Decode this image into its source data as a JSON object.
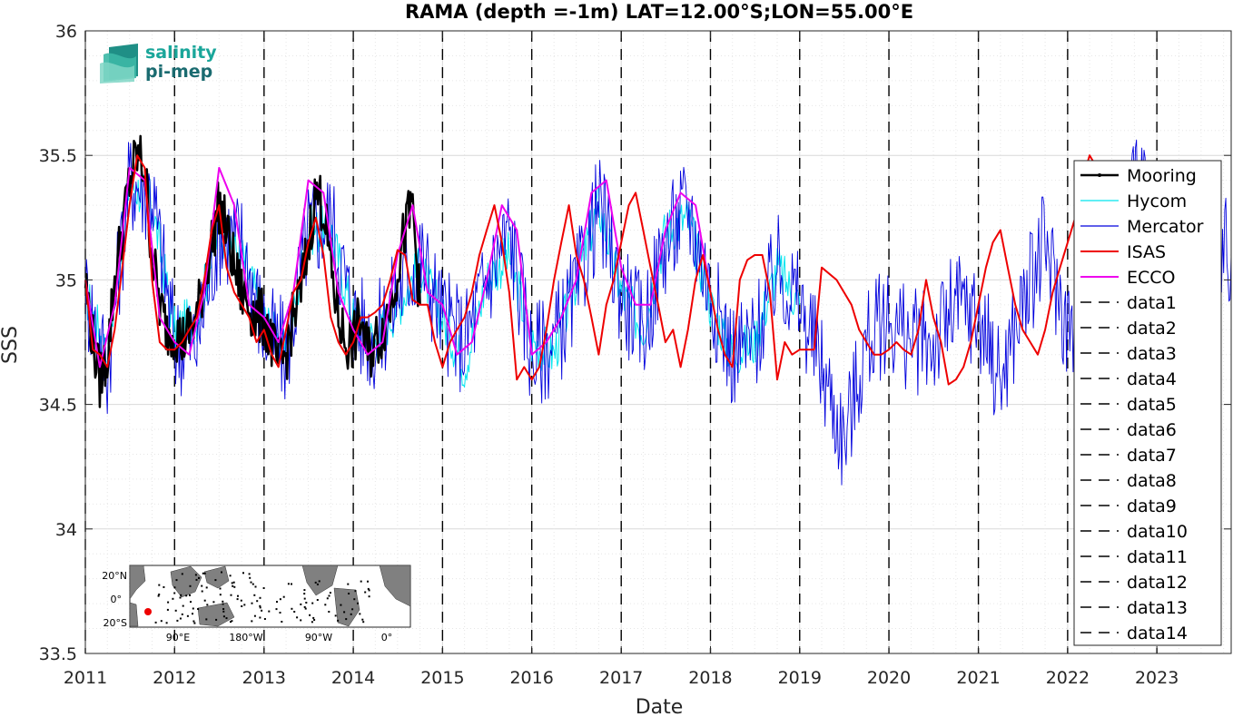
{
  "chart_data": {
    "type": "line",
    "title": "RAMA (depth =-1m) LAT=12.00°S;LON=55.00°E",
    "xlabel": "Date",
    "ylabel": "SSS",
    "xlim": [
      "2011-01-01",
      "2023-11-01"
    ],
    "ylim": [
      33.5,
      36
    ],
    "grid": true,
    "legend_position": "right",
    "x_ticks": [
      "2011",
      "2012",
      "2013",
      "2014",
      "2015",
      "2016",
      "2017",
      "2018",
      "2019",
      "2020",
      "2021",
      "2022",
      "2023"
    ],
    "y_ticks": [
      "33.5",
      "34",
      "34.5",
      "35",
      "35.5",
      "36"
    ],
    "vertical_dashed_lines": [
      "2011-01-01",
      "2012-01-01",
      "2013-01-01",
      "2014-01-01",
      "2015-01-01",
      "2016-01-01",
      "2017-01-01",
      "2018-01-01",
      "2019-01-01",
      "2020-01-01",
      "2021-01-01",
      "2022-01-01",
      "2023-01-01"
    ],
    "series": [
      {
        "name": "Mooring",
        "color": "#000000",
        "style": "solid-dot",
        "width": 2.5,
        "noise": 0.12,
        "x": [
          "2011-01-01",
          "2011-02-01",
          "2011-03-01",
          "2011-04-01",
          "2011-05-01",
          "2011-06-01",
          "2011-07-01",
          "2011-08-01",
          "2011-09-01",
          "2011-10-01",
          "2011-11-01",
          "2011-12-01",
          "2012-01-01",
          "2012-02-01",
          "2012-03-01",
          "2012-04-01",
          "2012-05-01",
          "2012-06-01",
          "2012-07-01",
          "2012-08-01",
          "2012-09-01",
          "2012-10-01",
          "2012-11-01",
          "2012-12-01",
          "2013-01-01",
          "2013-02-01",
          "2013-03-01",
          "2013-04-01",
          "2013-05-01",
          "2013-06-01",
          "2013-07-01",
          "2013-08-01",
          "2013-09-01",
          "2013-10-01",
          "2013-11-01",
          "2013-12-01",
          "2014-01-01",
          "2014-02-01",
          "2014-03-01",
          "2014-04-01",
          "2014-05-01",
          "2014-06-01",
          "2014-07-01",
          "2014-08-01",
          "2014-09-01",
          "2014-10-01"
        ],
        "y": [
          35.0,
          34.75,
          34.6,
          34.7,
          35.0,
          35.2,
          35.4,
          35.5,
          35.45,
          35.1,
          34.9,
          34.8,
          34.8,
          34.75,
          34.8,
          34.85,
          35.0,
          35.15,
          35.3,
          35.2,
          35.05,
          34.95,
          34.9,
          34.85,
          34.85,
          34.75,
          34.65,
          34.7,
          34.85,
          34.95,
          35.15,
          35.35,
          35.3,
          35.05,
          34.85,
          34.75,
          34.75,
          34.85,
          34.7,
          34.75,
          34.8,
          34.9,
          35.05,
          35.2,
          35.3,
          34.9
        ]
      },
      {
        "name": "Hycom",
        "color": "#00e5ee",
        "style": "solid",
        "width": 1,
        "noise": 0.1,
        "x": [
          "2011-01-01",
          "2011-04-01",
          "2011-07-01",
          "2011-10-01",
          "2012-01-01",
          "2012-04-01",
          "2012-07-01",
          "2012-10-01",
          "2013-01-01",
          "2013-04-01",
          "2013-07-01",
          "2013-10-01",
          "2014-01-01",
          "2014-04-01",
          "2014-07-01",
          "2014-10-01",
          "2015-01-01",
          "2015-04-01",
          "2015-07-01",
          "2015-10-01",
          "2016-01-01",
          "2016-04-01",
          "2016-07-01",
          "2016-10-01",
          "2017-01-01",
          "2017-04-01",
          "2017-07-01",
          "2017-10-01",
          "2018-01-01",
          "2018-04-01",
          "2018-07-01",
          "2018-10-01",
          "2019-01-01"
        ],
        "y": [
          34.95,
          34.7,
          35.4,
          35.3,
          34.8,
          34.85,
          35.2,
          35.1,
          34.85,
          34.7,
          35.2,
          35.2,
          34.85,
          34.75,
          34.9,
          35.05,
          34.85,
          34.65,
          35.0,
          35.1,
          34.75,
          34.7,
          35.0,
          35.3,
          34.95,
          34.8,
          35.2,
          35.25,
          34.9,
          34.7,
          34.75,
          35.05,
          34.9
        ]
      },
      {
        "name": "Mercator",
        "color": "#0000dd",
        "style": "solid",
        "width": 0.9,
        "noise": 0.22,
        "x": [
          "2011-01-01",
          "2011-04-01",
          "2011-07-01",
          "2011-10-01",
          "2012-01-01",
          "2012-04-01",
          "2012-07-01",
          "2012-10-01",
          "2013-01-01",
          "2013-04-01",
          "2013-07-01",
          "2013-10-01",
          "2014-01-01",
          "2014-04-01",
          "2014-07-01",
          "2014-10-01",
          "2015-01-01",
          "2015-04-01",
          "2015-07-01",
          "2015-10-01",
          "2016-01-01",
          "2016-04-01",
          "2016-07-01",
          "2016-10-01",
          "2017-01-01",
          "2017-04-01",
          "2017-07-01",
          "2017-10-01",
          "2018-01-01",
          "2018-04-01",
          "2018-07-01",
          "2018-10-01",
          "2019-01-01",
          "2019-04-01",
          "2019-07-01",
          "2019-10-01",
          "2020-01-01",
          "2020-04-01",
          "2020-07-01",
          "2020-10-01",
          "2021-01-01",
          "2021-04-01",
          "2021-07-01",
          "2021-10-01",
          "2022-01-01",
          "2022-04-01",
          "2022-07-01",
          "2022-10-01",
          "2023-01-01",
          "2023-04-01",
          "2023-07-01",
          "2023-11-01"
        ],
        "y": [
          34.95,
          34.65,
          35.4,
          35.35,
          34.75,
          34.75,
          35.2,
          35.15,
          34.8,
          34.7,
          35.2,
          35.25,
          34.85,
          34.75,
          34.95,
          35.1,
          34.85,
          34.75,
          35.0,
          35.2,
          34.7,
          34.75,
          34.95,
          35.3,
          34.95,
          34.8,
          35.15,
          35.3,
          34.95,
          34.7,
          34.75,
          35.05,
          34.9,
          34.65,
          34.35,
          34.75,
          34.85,
          34.75,
          34.75,
          34.9,
          34.85,
          34.6,
          34.9,
          35.15,
          34.8,
          34.85,
          35.05,
          35.45,
          35.2,
          34.95,
          35.15,
          35.1
        ]
      },
      {
        "name": "ISAS",
        "color": "#ee0000",
        "style": "solid",
        "width": 2,
        "noise": 0,
        "x": [
          "2011-01-01",
          "2011-02-01",
          "2011-03-01",
          "2011-04-01",
          "2011-05-01",
          "2011-06-01",
          "2011-07-01",
          "2011-08-01",
          "2011-09-01",
          "2011-10-01",
          "2011-11-01",
          "2011-12-01",
          "2012-01-01",
          "2012-02-01",
          "2012-03-01",
          "2012-04-01",
          "2012-05-01",
          "2012-06-01",
          "2012-07-01",
          "2012-08-01",
          "2012-09-01",
          "2012-10-01",
          "2012-11-01",
          "2012-12-01",
          "2013-01-01",
          "2013-02-01",
          "2013-03-01",
          "2013-04-01",
          "2013-05-01",
          "2013-06-01",
          "2013-07-01",
          "2013-08-01",
          "2013-09-01",
          "2013-10-01",
          "2013-11-01",
          "2013-12-01",
          "2014-01-01",
          "2014-02-01",
          "2014-03-01",
          "2014-04-01",
          "2014-05-01",
          "2014-06-01",
          "2014-07-01",
          "2014-08-01",
          "2014-09-01",
          "2014-10-01",
          "2014-11-01",
          "2014-12-01",
          "2015-01-01",
          "2015-02-01",
          "2015-03-01",
          "2015-04-01",
          "2015-05-01",
          "2015-06-01",
          "2015-07-01",
          "2015-08-01",
          "2015-09-01",
          "2015-10-01",
          "2015-11-01",
          "2015-12-01",
          "2016-01-01",
          "2016-02-01",
          "2016-03-01",
          "2016-04-01",
          "2016-05-01",
          "2016-06-01",
          "2016-07-01",
          "2016-08-01",
          "2016-09-01",
          "2016-10-01",
          "2016-11-01",
          "2016-12-01",
          "2017-01-01",
          "2017-02-01",
          "2017-03-01",
          "2017-04-01",
          "2017-05-01",
          "2017-06-01",
          "2017-07-01",
          "2017-08-01",
          "2017-09-01",
          "2017-10-01",
          "2017-11-01",
          "2017-12-01",
          "2018-01-01",
          "2018-02-01",
          "2018-03-01",
          "2018-04-01",
          "2018-05-01",
          "2018-06-01",
          "2018-07-01",
          "2018-08-01",
          "2018-09-01",
          "2018-10-01",
          "2018-11-01",
          "2018-12-01",
          "2019-01-01",
          "2019-02-01",
          "2019-03-01",
          "2019-04-01",
          "2019-06-01",
          "2019-08-01",
          "2019-09-01",
          "2019-10-01",
          "2019-11-01",
          "2019-12-01",
          "2020-01-01",
          "2020-02-01",
          "2020-03-01",
          "2020-04-01",
          "2020-05-01",
          "2020-06-01",
          "2020-07-01",
          "2020-08-01",
          "2020-09-01",
          "2020-10-01",
          "2020-11-01",
          "2020-12-01",
          "2021-01-01",
          "2021-02-01",
          "2021-03-01",
          "2021-04-01",
          "2021-05-01",
          "2021-06-01",
          "2021-07-01",
          "2021-08-01",
          "2021-09-01",
          "2021-10-01",
          "2021-11-01",
          "2021-12-01",
          "2022-01-01",
          "2022-02-01",
          "2022-03-01",
          "2022-04-01",
          "2022-05-01",
          "2022-06-01",
          "2022-07-01",
          "2022-08-01",
          "2022-09-01",
          "2022-10-01",
          "2022-11-01",
          "2022-12-01",
          "2023-01-01"
        ],
        "y": [
          35.0,
          34.72,
          34.7,
          34.65,
          34.8,
          35.05,
          35.3,
          35.5,
          35.45,
          35.0,
          34.75,
          34.72,
          34.72,
          34.75,
          34.8,
          34.85,
          35.0,
          35.2,
          35.3,
          35.05,
          34.95,
          34.9,
          34.85,
          34.75,
          34.8,
          34.7,
          34.65,
          34.8,
          34.95,
          35.0,
          35.15,
          35.25,
          35.1,
          34.85,
          34.75,
          34.7,
          34.75,
          34.85,
          34.85,
          34.87,
          34.9,
          35.0,
          35.12,
          35.1,
          34.92,
          34.9,
          34.9,
          34.75,
          34.65,
          34.75,
          34.8,
          34.85,
          34.95,
          35.1,
          35.2,
          35.3,
          35.15,
          34.95,
          34.6,
          34.65,
          34.6,
          34.65,
          34.8,
          35.0,
          35.15,
          35.3,
          35.1,
          35.0,
          34.85,
          34.7,
          34.9,
          35.0,
          35.15,
          35.3,
          35.35,
          35.2,
          35.05,
          34.9,
          34.75,
          34.8,
          34.65,
          34.8,
          35.0,
          35.1,
          34.95,
          34.8,
          34.7,
          34.65,
          35.0,
          35.08,
          35.1,
          35.1,
          34.95,
          34.6,
          34.75,
          34.7,
          34.72,
          34.72,
          34.72,
          35.05,
          35.0,
          34.9,
          34.8,
          34.75,
          34.7,
          34.7,
          34.72,
          34.75,
          34.72,
          34.7,
          34.8,
          35.0,
          34.85,
          34.75,
          34.58,
          34.6,
          34.65,
          34.75,
          34.9,
          35.05,
          35.15,
          35.2,
          35.05,
          34.9,
          34.8,
          34.75,
          34.7,
          34.8,
          34.95,
          35.05,
          35.15,
          35.25,
          35.4,
          35.5,
          35.45,
          35.4,
          35.35,
          35.3,
          35.25,
          35.2,
          35.15,
          35.1,
          35.05
        ]
      },
      {
        "name": "ECCO",
        "color": "#ee00ee",
        "style": "solid",
        "width": 2,
        "noise": 0,
        "x": [
          "2011-01-01",
          "2011-03-01",
          "2011-05-01",
          "2011-07-01",
          "2011-09-01",
          "2011-11-01",
          "2012-01-01",
          "2012-03-01",
          "2012-05-01",
          "2012-07-01",
          "2012-09-01",
          "2012-11-01",
          "2013-01-01",
          "2013-03-01",
          "2013-05-01",
          "2013-07-01",
          "2013-09-01",
          "2013-11-01",
          "2014-01-01",
          "2014-03-01",
          "2014-05-01",
          "2014-07-01",
          "2014-09-01",
          "2014-11-01",
          "2015-01-01",
          "2015-03-01",
          "2015-05-01",
          "2015-07-01",
          "2015-09-01",
          "2015-11-01",
          "2016-01-01",
          "2016-03-01",
          "2016-05-01",
          "2016-07-01",
          "2016-09-01",
          "2016-11-01",
          "2017-01-01",
          "2017-03-01",
          "2017-05-01",
          "2017-07-01",
          "2017-09-01",
          "2017-11-01",
          "2018-01-01"
        ],
        "y": [
          35.0,
          34.65,
          34.9,
          35.45,
          35.4,
          34.85,
          34.75,
          34.7,
          34.95,
          35.45,
          35.3,
          34.9,
          34.85,
          34.75,
          34.95,
          35.4,
          35.35,
          34.95,
          34.8,
          34.7,
          34.75,
          35.1,
          35.3,
          34.95,
          34.9,
          34.7,
          34.75,
          35.0,
          35.3,
          35.2,
          34.7,
          34.75,
          34.85,
          35.0,
          35.35,
          35.4,
          35.05,
          34.9,
          34.9,
          35.2,
          35.35,
          35.3,
          34.95
        ]
      },
      {
        "name": "data1",
        "color": "#000000",
        "style": "dashed"
      },
      {
        "name": "data2",
        "color": "#000000",
        "style": "dashed"
      },
      {
        "name": "data3",
        "color": "#000000",
        "style": "dashed"
      },
      {
        "name": "data4",
        "color": "#000000",
        "style": "dashed"
      },
      {
        "name": "data5",
        "color": "#000000",
        "style": "dashed"
      },
      {
        "name": "data6",
        "color": "#000000",
        "style": "dashed"
      },
      {
        "name": "data7",
        "color": "#000000",
        "style": "dashed"
      },
      {
        "name": "data8",
        "color": "#000000",
        "style": "dashed"
      },
      {
        "name": "data9",
        "color": "#000000",
        "style": "dashed"
      },
      {
        "name": "data10",
        "color": "#000000",
        "style": "dashed"
      },
      {
        "name": "data11",
        "color": "#000000",
        "style": "dashed"
      },
      {
        "name": "data12",
        "color": "#000000",
        "style": "dashed"
      },
      {
        "name": "data13",
        "color": "#000000",
        "style": "dashed"
      },
      {
        "name": "data14",
        "color": "#000000",
        "style": "dashed"
      }
    ]
  },
  "logo": {
    "line1": "salinity",
    "line2": "pi-mep",
    "color1": "#1aa69a",
    "color2": "#1a6b70"
  },
  "inset_map": {
    "lat_labels": [
      "20°N",
      "0°",
      "20°S"
    ],
    "lon_labels": [
      "90°E",
      "180°W",
      "90°W",
      "0°"
    ],
    "ocean_color": "#ffffff",
    "land_color": "#808080",
    "marker_color": "#ee0000"
  }
}
